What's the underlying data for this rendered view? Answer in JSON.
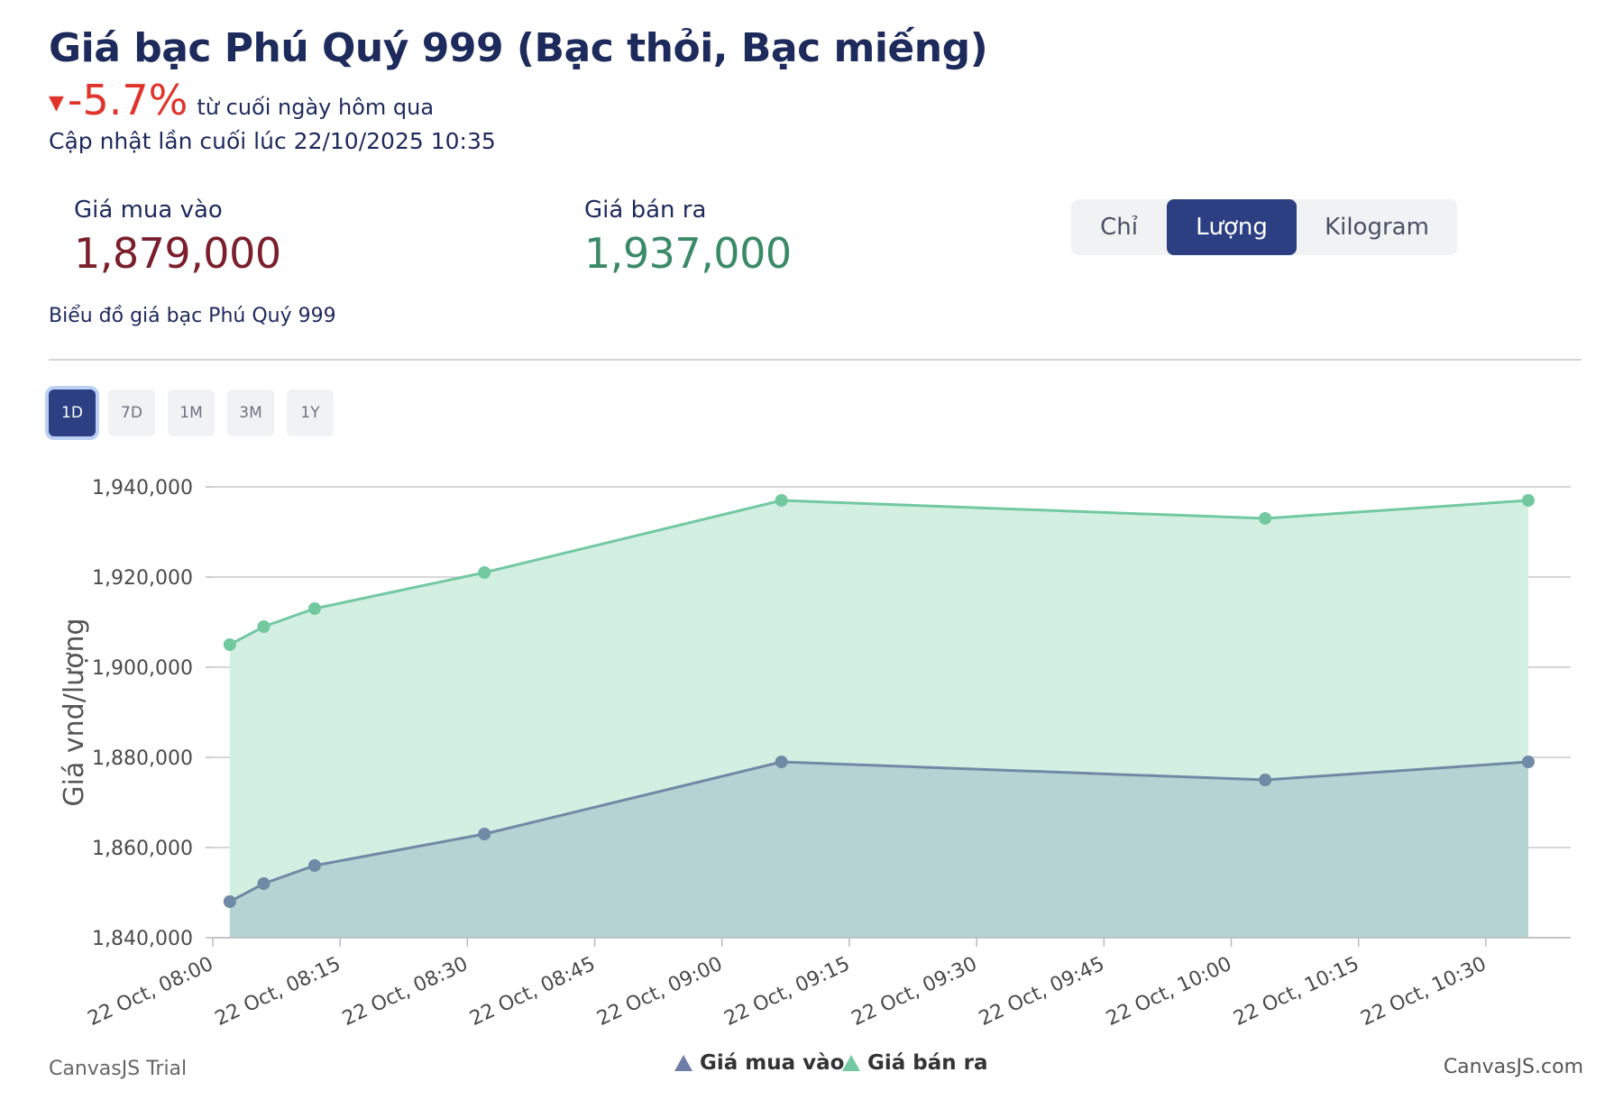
{
  "header": {
    "title": "Giá bạc Phú Quý 999 (Bạc thỏi, Bạc miếng)",
    "change_arrow": "▼",
    "change_value": "-5.7%",
    "change_text": "từ cuối ngày hôm qua",
    "updated": "Cập nhật lần cuối lúc 22/10/2025 10:35"
  },
  "prices": {
    "buy_label": "Giá mua vào",
    "buy_value": "1,879,000",
    "sell_label": "Giá bán ra",
    "sell_value": "1,937,000"
  },
  "units": {
    "items": [
      "Chỉ",
      "Lượng",
      "Kilogram"
    ],
    "active": "Lượng"
  },
  "chart_caption": "Biểu đồ giá bạc Phú Quý 999",
  "ranges": {
    "items": [
      "1D",
      "7D",
      "1M",
      "3M",
      "1Y"
    ],
    "active": "1D"
  },
  "colors": {
    "buy": "#6f8aa6",
    "buy_fill": "#b5d3d2",
    "sell": "#72c9a0",
    "sell_fill": "#d3efe2",
    "accent": "#2b3f82",
    "negative": "#e0332a"
  },
  "chart_data": {
    "type": "area",
    "ylabel": "Giá vnd/lượng",
    "xlabel": "",
    "ylim": [
      1840000,
      1940000
    ],
    "yticks": [
      1840000,
      1860000,
      1880000,
      1900000,
      1920000,
      1940000
    ],
    "ytick_labels": [
      "1,840,000",
      "1,860,000",
      "1,880,000",
      "1,900,000",
      "1,920,000",
      "1,940,000"
    ],
    "xlim": [
      "08:00",
      "10:40"
    ],
    "xtick_labels": [
      "22 Oct, 08:00",
      "22 Oct, 08:15",
      "22 Oct, 08:30",
      "22 Oct, 08:45",
      "22 Oct, 09:00",
      "22 Oct, 09:15",
      "22 Oct, 09:30",
      "22 Oct, 09:45",
      "22 Oct, 10:00",
      "22 Oct, 10:15",
      "22 Oct, 10:30"
    ],
    "x": [
      "08:02",
      "08:06",
      "08:12",
      "08:32",
      "09:07",
      "10:04",
      "10:35"
    ],
    "series": [
      {
        "name": "Giá mua vào",
        "values": [
          1848000,
          1852000,
          1856000,
          1863000,
          1879000,
          1875000,
          1879000
        ]
      },
      {
        "name": "Giá bán ra",
        "values": [
          1905000,
          1909000,
          1913000,
          1921000,
          1937000,
          1933000,
          1937000
        ]
      }
    ],
    "grid": true,
    "legend": "bottom-center",
    "credit_left": "CanvasJS Trial",
    "credit_right": "CanvasJS.com"
  }
}
